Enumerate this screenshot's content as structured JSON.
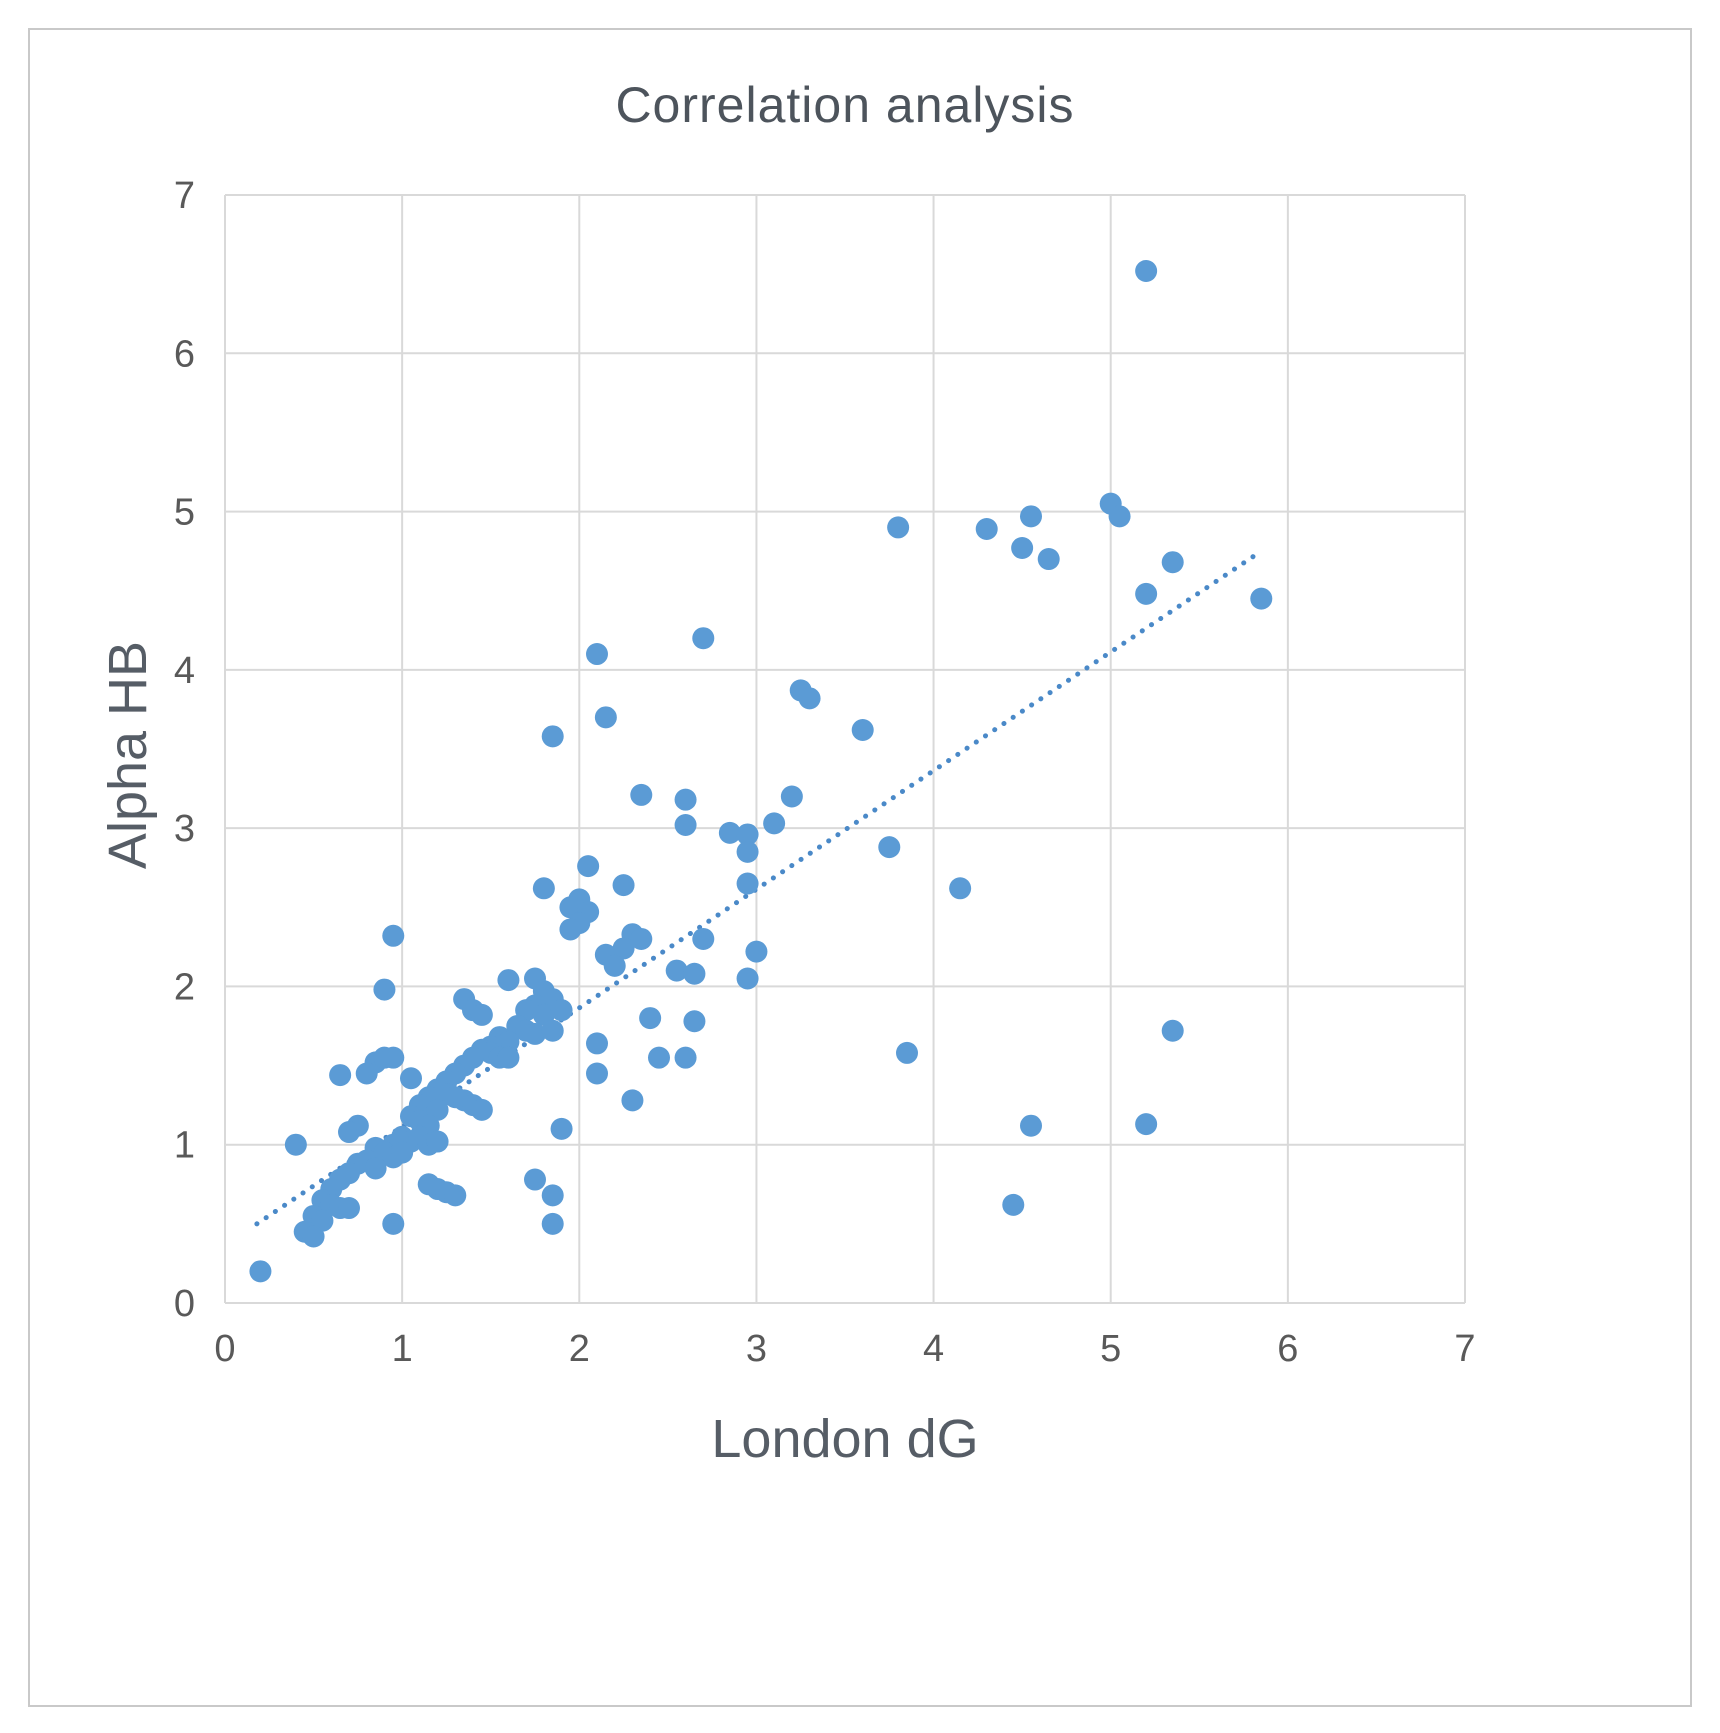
{
  "figure": {
    "title": "Correlation analysis",
    "xlabel": "London dG",
    "ylabel": "Alpha HB"
  },
  "chart_data": {
    "type": "scatter",
    "title": "Correlation analysis",
    "xlabel": "London dG",
    "ylabel": "Alpha HB",
    "xlim": [
      0,
      7
    ],
    "ylim": [
      0,
      7
    ],
    "x_ticks": [
      0,
      1,
      2,
      3,
      4,
      5,
      6,
      7
    ],
    "y_ticks": [
      0,
      1,
      2,
      3,
      4,
      5,
      6,
      7
    ],
    "grid": true,
    "legend": "none",
    "marker_color": "#5B9BD5",
    "gridline_color": "#D9D9D9",
    "text_color": "#595959",
    "trendline": {
      "style": "dotted",
      "color": "#4A89C8",
      "x1": 0.18,
      "y1": 0.5,
      "x2": 5.85,
      "y2": 4.75
    },
    "points": [
      [
        5.2,
        6.52
      ],
      [
        5.0,
        5.05
      ],
      [
        5.05,
        4.97
      ],
      [
        4.55,
        4.97
      ],
      [
        3.8,
        4.9
      ],
      [
        4.3,
        4.89
      ],
      [
        4.5,
        4.77
      ],
      [
        4.65,
        4.7
      ],
      [
        5.35,
        4.68
      ],
      [
        5.2,
        4.48
      ],
      [
        5.85,
        4.45
      ],
      [
        2.7,
        4.2
      ],
      [
        2.1,
        4.1
      ],
      [
        3.25,
        3.87
      ],
      [
        3.3,
        3.82
      ],
      [
        2.15,
        3.7
      ],
      [
        3.6,
        3.62
      ],
      [
        1.85,
        3.58
      ],
      [
        2.35,
        3.21
      ],
      [
        3.2,
        3.2
      ],
      [
        2.6,
        3.18
      ],
      [
        2.6,
        3.02
      ],
      [
        3.1,
        3.03
      ],
      [
        2.85,
        2.97
      ],
      [
        2.95,
        2.96
      ],
      [
        3.75,
        2.88
      ],
      [
        2.95,
        2.85
      ],
      [
        2.05,
        2.76
      ],
      [
        2.95,
        2.65
      ],
      [
        4.15,
        2.62
      ],
      [
        2.25,
        2.64
      ],
      [
        1.8,
        2.62
      ],
      [
        2.0,
        2.55
      ],
      [
        1.95,
        2.5
      ],
      [
        2.05,
        2.47
      ],
      [
        2.0,
        2.4
      ],
      [
        1.95,
        2.36
      ],
      [
        2.3,
        2.33
      ],
      [
        0.95,
        2.32
      ],
      [
        2.35,
        2.3
      ],
      [
        2.25,
        2.24
      ],
      [
        2.7,
        2.3
      ],
      [
        2.15,
        2.2
      ],
      [
        2.2,
        2.13
      ],
      [
        3.0,
        2.22
      ],
      [
        2.55,
        2.1
      ],
      [
        2.65,
        2.08
      ],
      [
        2.95,
        2.05
      ],
      [
        0.9,
        1.98
      ],
      [
        1.75,
        2.05
      ],
      [
        1.6,
        2.04
      ],
      [
        1.8,
        1.97
      ],
      [
        1.85,
        1.92
      ],
      [
        1.75,
        1.88
      ],
      [
        1.7,
        1.85
      ],
      [
        1.8,
        1.82
      ],
      [
        1.9,
        1.85
      ],
      [
        1.35,
        1.92
      ],
      [
        1.4,
        1.85
      ],
      [
        1.45,
        1.82
      ],
      [
        2.4,
        1.8
      ],
      [
        2.65,
        1.78
      ],
      [
        1.65,
        1.75
      ],
      [
        1.7,
        1.72
      ],
      [
        1.75,
        1.7
      ],
      [
        1.85,
        1.72
      ],
      [
        1.55,
        1.68
      ],
      [
        1.6,
        1.65
      ],
      [
        1.5,
        1.62
      ],
      [
        2.1,
        1.64
      ],
      [
        1.45,
        1.6
      ],
      [
        1.5,
        1.58
      ],
      [
        1.55,
        1.55
      ],
      [
        1.6,
        1.55
      ],
      [
        1.4,
        1.55
      ],
      [
        1.35,
        1.5
      ],
      [
        2.45,
        1.55
      ],
      [
        2.6,
        1.55
      ],
      [
        0.85,
        1.52
      ],
      [
        0.9,
        1.55
      ],
      [
        0.95,
        1.55
      ],
      [
        0.8,
        1.45
      ],
      [
        0.65,
        1.44
      ],
      [
        1.05,
        1.42
      ],
      [
        1.3,
        1.45
      ],
      [
        1.25,
        1.4
      ],
      [
        2.1,
        1.45
      ],
      [
        1.2,
        1.35
      ],
      [
        1.25,
        1.32
      ],
      [
        1.3,
        1.3
      ],
      [
        1.15,
        1.3
      ],
      [
        1.35,
        1.28
      ],
      [
        2.3,
        1.28
      ],
      [
        1.1,
        1.25
      ],
      [
        1.2,
        1.22
      ],
      [
        1.4,
        1.25
      ],
      [
        1.45,
        1.22
      ],
      [
        1.05,
        1.18
      ],
      [
        1.1,
        1.15
      ],
      [
        1.15,
        1.12
      ],
      [
        0.75,
        1.12
      ],
      [
        0.7,
        1.08
      ],
      [
        1.9,
        1.1
      ],
      [
        1.0,
        1.05
      ],
      [
        1.05,
        1.02
      ],
      [
        1.1,
        1.05
      ],
      [
        0.95,
        1.0
      ],
      [
        0.4,
        1.0
      ],
      [
        1.15,
        1.0
      ],
      [
        1.2,
        1.02
      ],
      [
        0.85,
        0.98
      ],
      [
        0.9,
        0.95
      ],
      [
        0.95,
        0.92
      ],
      [
        1.0,
        0.95
      ],
      [
        0.8,
        0.9
      ],
      [
        0.75,
        0.88
      ],
      [
        0.85,
        0.85
      ],
      [
        0.7,
        0.82
      ],
      [
        0.65,
        0.78
      ],
      [
        1.75,
        0.78
      ],
      [
        0.6,
        0.72
      ],
      [
        1.2,
        0.72
      ],
      [
        1.25,
        0.7
      ],
      [
        1.3,
        0.68
      ],
      [
        1.85,
        0.68
      ],
      [
        0.55,
        0.65
      ],
      [
        0.6,
        0.62
      ],
      [
        0.65,
        0.6
      ],
      [
        0.7,
        0.6
      ],
      [
        4.45,
        0.62
      ],
      [
        0.5,
        0.55
      ],
      [
        0.55,
        0.52
      ],
      [
        0.95,
        0.5
      ],
      [
        1.85,
        0.5
      ],
      [
        0.45,
        0.45
      ],
      [
        0.5,
        0.42
      ],
      [
        0.2,
        0.2
      ],
      [
        4.55,
        1.12
      ],
      [
        5.2,
        1.13
      ],
      [
        5.35,
        1.72
      ],
      [
        3.85,
        1.58
      ],
      [
        1.15,
        0.75
      ]
    ]
  }
}
